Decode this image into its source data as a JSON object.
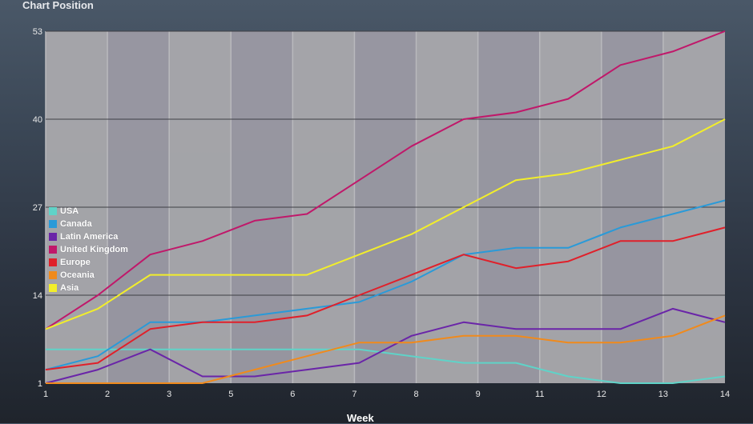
{
  "chart_data": {
    "type": "line",
    "title": "Chart Position",
    "xlabel": "Week",
    "ylabel": "Chart Position",
    "x": [
      1,
      2,
      3,
      4,
      5,
      6,
      7,
      8,
      9,
      10,
      11,
      12,
      13,
      14
    ],
    "x_tick_labels": [
      "1",
      "2",
      "3",
      "5",
      "6",
      "7",
      "8",
      "9",
      "11",
      "12",
      "13",
      "14"
    ],
    "y_ticks": [
      1,
      14,
      27,
      40,
      53
    ],
    "ylim": [
      1,
      53
    ],
    "grid": "horizontal lines at y ticks; alternating vertical background bands",
    "legend_position": "left, inside plot",
    "series": [
      {
        "name": "USA",
        "color": "#5fd3c8",
        "values": [
          6,
          6,
          6,
          6,
          6,
          6,
          6,
          5,
          4,
          4,
          2,
          1,
          1,
          2
        ]
      },
      {
        "name": "Canada",
        "color": "#2a9ad8",
        "values": [
          3,
          5,
          10,
          10,
          11,
          12,
          13,
          16,
          20,
          21,
          21,
          24,
          26,
          28
        ]
      },
      {
        "name": "Latin America",
        "color": "#6a25a8",
        "values": [
          1,
          3,
          6,
          2,
          2,
          3,
          4,
          8,
          10,
          9,
          9,
          9,
          12,
          10
        ]
      },
      {
        "name": "United Kingdom",
        "color": "#c0186a",
        "values": [
          9,
          14,
          20,
          22,
          25,
          26,
          31,
          36,
          40,
          41,
          43,
          48,
          50,
          53
        ]
      },
      {
        "name": "Europe",
        "color": "#e0202a",
        "values": [
          3,
          4,
          9,
          10,
          10,
          11,
          14,
          17,
          20,
          18,
          19,
          22,
          22,
          24
        ]
      },
      {
        "name": "Oceania",
        "color": "#f08a1c",
        "values": [
          1,
          1,
          1,
          1,
          3,
          5,
          7,
          7,
          8,
          8,
          7,
          7,
          8,
          11
        ]
      },
      {
        "name": "Asia",
        "color": "#f2ee2a",
        "values": [
          9,
          12,
          17,
          17,
          17,
          17,
          20,
          23,
          27,
          31,
          32,
          34,
          36,
          40
        ]
      }
    ]
  },
  "header": {
    "title": "Chart Position"
  },
  "axis": {
    "x_title": "Week"
  },
  "legend": {
    "items": [
      {
        "label": "USA",
        "color": "#5fd3c8"
      },
      {
        "label": "Canada",
        "color": "#2a9ad8"
      },
      {
        "label": "Latin America",
        "color": "#6a25a8"
      },
      {
        "label": "United Kingdom",
        "color": "#c0186a"
      },
      {
        "label": "Europe",
        "color": "#e0202a"
      },
      {
        "label": "Oceania",
        "color": "#f08a1c"
      },
      {
        "label": "Asia",
        "color": "#f2ee2a"
      }
    ]
  }
}
